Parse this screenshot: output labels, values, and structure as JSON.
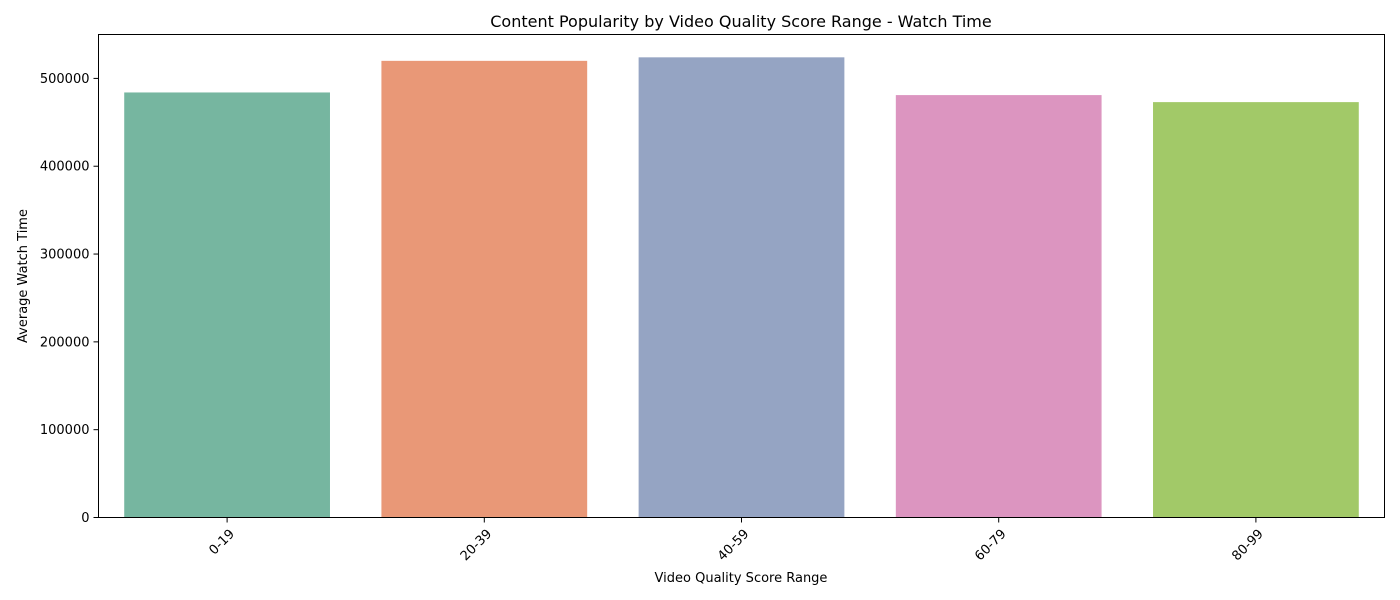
{
  "chart_data": {
    "type": "bar",
    "title": "Content Popularity by Video Quality Score Range - Watch Time",
    "xlabel": "Video Quality Score Range",
    "ylabel": "Average Watch Time",
    "categories": [
      "0-19",
      "20-39",
      "40-59",
      "60-79",
      "80-99"
    ],
    "values": [
      484000,
      520000,
      524000,
      481000,
      473000
    ],
    "colors": [
      "#76b6a0",
      "#e99877",
      "#95a4c3",
      "#dc95c0",
      "#a2c968"
    ],
    "ylim": [
      0,
      550000
    ],
    "yticks": [
      0,
      100000,
      200000,
      300000,
      400000,
      500000
    ],
    "ytick_labels": [
      "0",
      "100000",
      "200000",
      "300000",
      "400000",
      "500000"
    ],
    "grid": false,
    "legend": "none"
  }
}
